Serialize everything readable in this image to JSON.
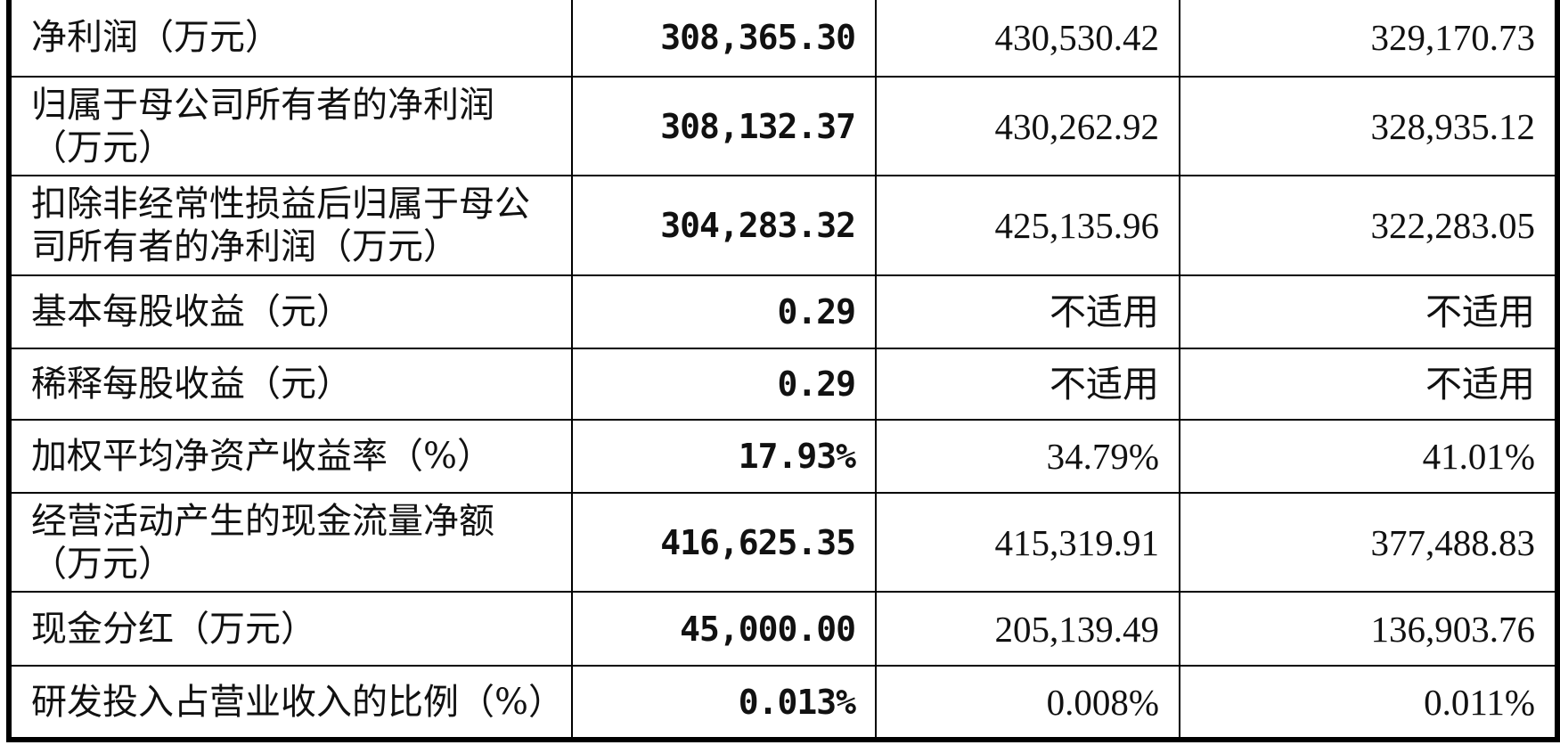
{
  "table": {
    "rows": [
      [
        "净利润（万元）",
        "308,365.30",
        "430,530.42",
        "329,170.73"
      ],
      [
        "归属于母公司所有者的净利润（万元）",
        "308,132.37",
        "430,262.92",
        "328,935.12"
      ],
      [
        "扣除非经常性损益后归属于母公司所有者的净利润（万元）",
        "304,283.32",
        "425,135.96",
        "322,283.05"
      ],
      [
        "基本每股收益（元）",
        "0.29",
        "不适用",
        "不适用"
      ],
      [
        "稀释每股收益（元）",
        "0.29",
        "不适用",
        "不适用"
      ],
      [
        "加权平均净资产收益率（%）",
        "17.93%",
        "34.79%",
        "41.01%"
      ],
      [
        "经营活动产生的现金流量净额（万元）",
        "416,625.35",
        "415,319.91",
        "377,488.83"
      ],
      [
        "现金分红（万元）",
        "45,000.00",
        "205,139.49",
        "136,903.76"
      ],
      [
        "研发投入占营业收入的比例（%）",
        "0.013%",
        "0.008%",
        "0.011%"
      ]
    ]
  }
}
